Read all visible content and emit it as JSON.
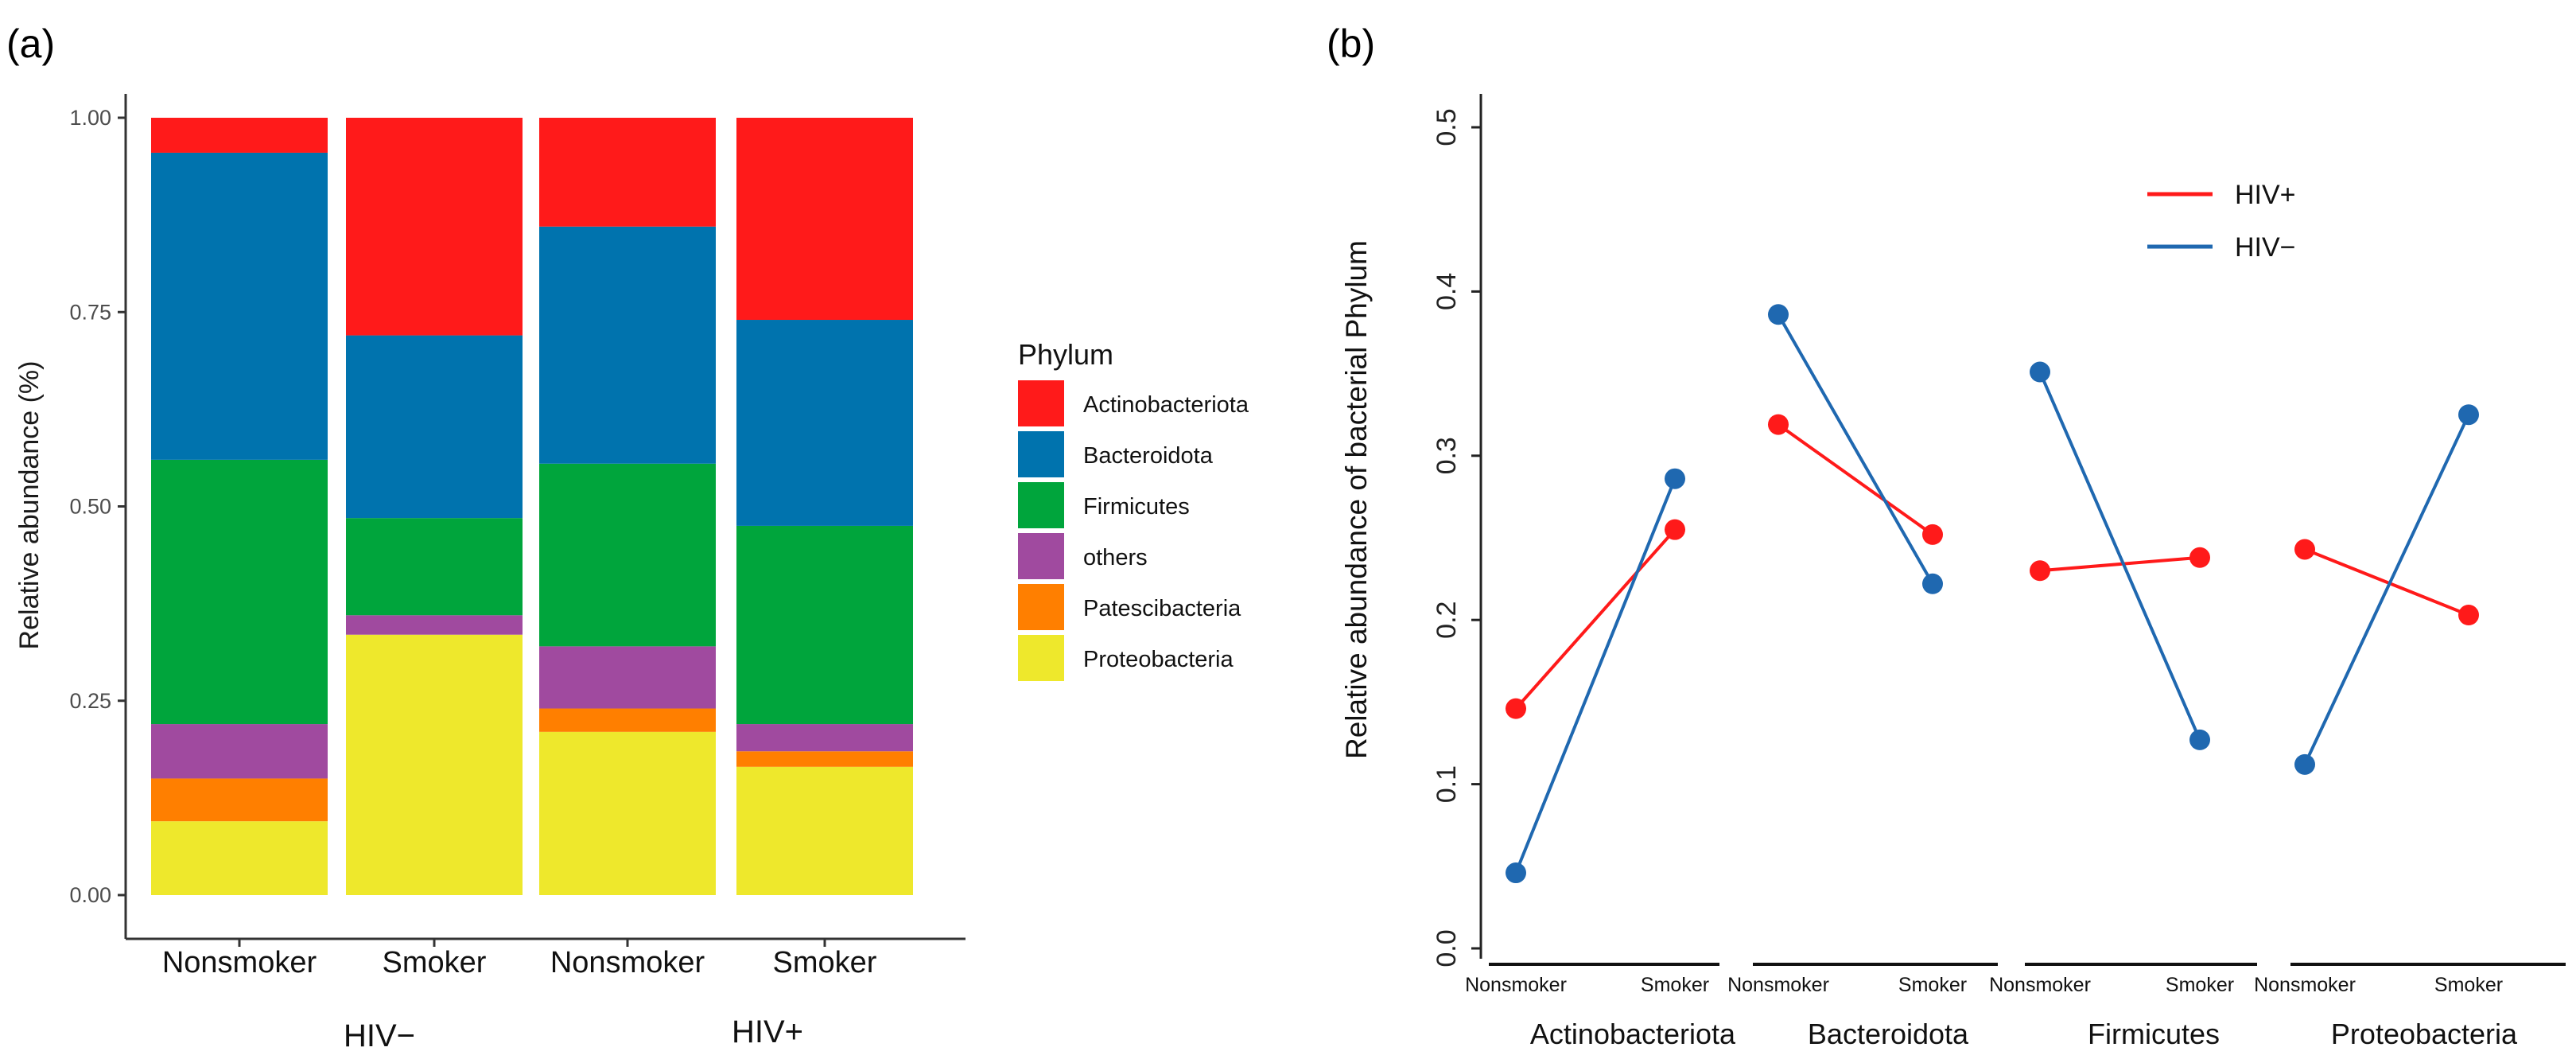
{
  "panels": {
    "a": "(a)",
    "b": "(b)"
  },
  "chart_data": [
    {
      "type": "bar",
      "stacked": true,
      "panel": "(a)",
      "categories": [
        "Nonsmoker",
        "Smoker",
        "Nonsmoker",
        "Smoker"
      ],
      "groups": [
        "HIV−",
        "HIV+"
      ],
      "ylabel": "Relative abundance (%)",
      "ylim": [
        0,
        1
      ],
      "yticks": [
        "0.00",
        "0.25",
        "0.50",
        "0.75",
        "1.00"
      ],
      "grid": false,
      "legend": {
        "title": "Phylum",
        "position": "right"
      },
      "series": [
        {
          "name": "Proteobacteria",
          "color": "#EEE82C",
          "values": [
            0.095,
            0.335,
            0.21,
            0.165
          ]
        },
        {
          "name": "Patescibacteria",
          "color": "#FF7F00",
          "values": [
            0.055,
            0.0,
            0.03,
            0.02
          ]
        },
        {
          "name": "others",
          "color": "#A04A9F",
          "values": [
            0.07,
            0.025,
            0.08,
            0.035
          ]
        },
        {
          "name": "Firmicutes",
          "color": "#00A53C",
          "values": [
            0.34,
            0.125,
            0.235,
            0.255
          ]
        },
        {
          "name": "Bacteroidota",
          "color": "#0073AE",
          "values": [
            0.395,
            0.235,
            0.305,
            0.265
          ]
        },
        {
          "name": "Actinobacteriota",
          "color": "#FF1A1A",
          "values": [
            0.045,
            0.28,
            0.14,
            0.26
          ]
        }
      ]
    },
    {
      "type": "line",
      "panel": "(b)",
      "ylabel": "Relative abundance of bacterial Phylum",
      "ylim": [
        0,
        0.5
      ],
      "yticks": [
        "0.0",
        "0.1",
        "0.2",
        "0.3",
        "0.4",
        "0.5"
      ],
      "grid": false,
      "legend": {
        "position": "top-right"
      },
      "facets": [
        "Actinobacteriota",
        "Bacteroidota",
        "Firmicutes",
        "Proteobacteria"
      ],
      "x": [
        "Nonsmoker",
        "Smoker"
      ],
      "series": [
        {
          "name": "HIV+",
          "color": "#FF1A1A",
          "values": [
            [
              0.146,
              0.255
            ],
            [
              0.319,
              0.252
            ],
            [
              0.23,
              0.238
            ],
            [
              0.243,
              0.203
            ]
          ]
        },
        {
          "name": "HIV−",
          "color": "#1F68B0",
          "values": [
            [
              0.046,
              0.286
            ],
            [
              0.386,
              0.222
            ],
            [
              0.351,
              0.127
            ],
            [
              0.112,
              0.325
            ]
          ]
        }
      ]
    }
  ]
}
